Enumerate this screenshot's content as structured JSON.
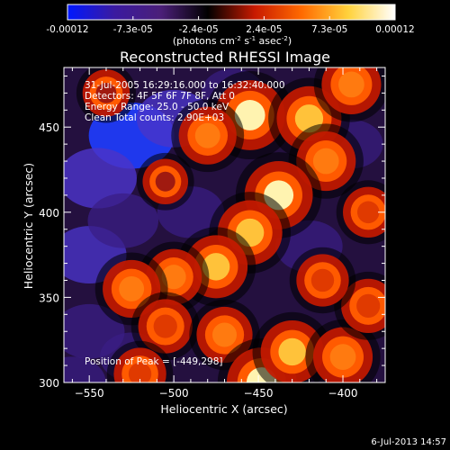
{
  "colorbar": {
    "tick_labels": [
      "-0.00012",
      "-7.3e-05",
      "-2.4e-05",
      "2.4e-05",
      "7.3e-05",
      "0.00012"
    ],
    "units": "(photons cm",
    "units_exp1": "-2",
    "units_mid": " s",
    "units_exp2": "-1",
    "units_end": " asec",
    "units_exp3": "-2",
    "units_close": ")",
    "range": [
      -0.00012,
      0.00012
    ],
    "stops": [
      "#0018ff",
      "#3a1aa0",
      "#4b1f78",
      "#000000",
      "#c81a00",
      "#ff6a00",
      "#ffd23c",
      "#ffffff"
    ]
  },
  "chart_data": {
    "type": "heatmap",
    "title": "Reconstructed RHESSI Image",
    "xlabel": "Heliocentric X (arcsec)",
    "ylabel": "Heliocentric Y (arcsec)",
    "xlim": [
      -565,
      -375
    ],
    "ylim": [
      300,
      485
    ],
    "x_ticks": [
      -550,
      -500,
      -450,
      -400
    ],
    "y_ticks": [
      300,
      350,
      400,
      450
    ],
    "x_tick_labels": [
      "−550",
      "−500",
      "−450",
      "−400"
    ],
    "y_tick_labels": [
      "300",
      "350",
      "400",
      "450"
    ],
    "info_lines": [
      "31-Jul-2005 16:29:16.000 to 16:32:40.000",
      "Detectors: 4F 5F 6F 7F 8F, Att 0",
      "Energy Range: 25.0 - 50.0 keV",
      "Clean    Total counts: 2.90E+03"
    ],
    "peak_label": "Position of Peak = [-449,298]",
    "peak": [
      -449,
      298
    ],
    "bright_sources": [
      {
        "x": -455,
        "y": 457,
        "level": 1.0
      },
      {
        "x": -420,
        "y": 455,
        "level": 0.85
      },
      {
        "x": -410,
        "y": 430,
        "level": 0.7
      },
      {
        "x": -438,
        "y": 410,
        "level": 0.95
      },
      {
        "x": -455,
        "y": 388,
        "level": 0.85
      },
      {
        "x": -475,
        "y": 368,
        "level": 0.8
      },
      {
        "x": -500,
        "y": 362,
        "level": 0.6
      },
      {
        "x": -525,
        "y": 355,
        "level": 0.65
      },
      {
        "x": -505,
        "y": 333,
        "level": 0.55
      },
      {
        "x": -470,
        "y": 328,
        "level": 0.6
      },
      {
        "x": -448,
        "y": 300,
        "level": 1.0
      },
      {
        "x": -430,
        "y": 318,
        "level": 0.8
      },
      {
        "x": -400,
        "y": 315,
        "level": 0.7
      },
      {
        "x": -385,
        "y": 345,
        "level": 0.55
      },
      {
        "x": -412,
        "y": 360,
        "level": 0.5
      },
      {
        "x": -520,
        "y": 305,
        "level": 0.5
      },
      {
        "x": -540,
        "y": 470,
        "level": 0.35
      },
      {
        "x": -505,
        "y": 418,
        "level": 0.3
      },
      {
        "x": -480,
        "y": 445,
        "level": 0.65
      },
      {
        "x": -395,
        "y": 475,
        "level": 0.7
      },
      {
        "x": -385,
        "y": 400,
        "level": 0.45
      }
    ],
    "dim_regions": [
      {
        "x": -525,
        "y": 445,
        "level": -0.9
      },
      {
        "x": -545,
        "y": 420,
        "level": -0.7
      },
      {
        "x": -500,
        "y": 455,
        "level": -0.6
      },
      {
        "x": -550,
        "y": 375,
        "level": -0.6
      },
      {
        "x": -530,
        "y": 395,
        "level": -0.5
      },
      {
        "x": -550,
        "y": 330,
        "level": -0.5
      },
      {
        "x": -490,
        "y": 400,
        "level": -0.4
      },
      {
        "x": -420,
        "y": 380,
        "level": -0.4
      },
      {
        "x": -395,
        "y": 440,
        "level": -0.3
      },
      {
        "x": -525,
        "y": 315,
        "level": -0.3
      },
      {
        "x": -465,
        "y": 470,
        "level": -0.3
      },
      {
        "x": -560,
        "y": 300,
        "level": -0.4
      }
    ]
  },
  "timestamp": "6-Jul-2013 14:57"
}
